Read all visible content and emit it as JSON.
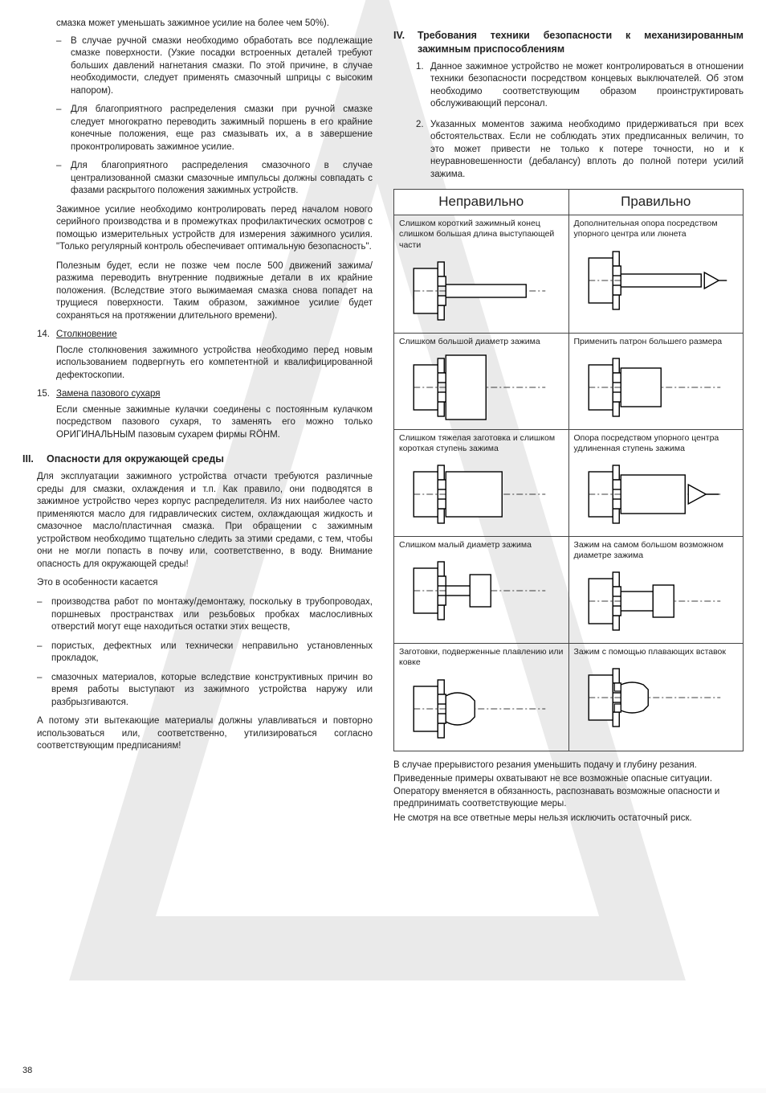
{
  "page_number": "38",
  "watermark_color": "#d6d6d6",
  "text_color": "#222222",
  "left": {
    "cont_para": "смазка может уменьшать зажимное усилие на более чем 50%).",
    "dash1": [
      "В случае ручной смазки необходимо обработать все подлежащие смазке поверхности. (Узкие посадки встроенных деталей требуют больших давлений нагнетания смазки. По этой причине, в случае необходимости, следует применять смазочный шприцы с высоким напором).",
      "Для благоприятного распределения смазки при ручной смазке следует многократно переводить зажимный поршень в его крайние конечные положения, еще раз смазывать их, а в завершение проконтролировать зажимное усилие.",
      "Для благоприятного распределения смазочного в случае централизованной смазки смазочные импульсы должны совпадать с фазами раскрытого положения зажимных устройств."
    ],
    "indent1": "Зажимное усилие необходимо контролировать перед началом нового серийного производства и в промежутках профилактических осмотров с помощью измерительных устройств для измерения зажимного усилия. \"Только регулярный контроль обеспечивает оптимальную безопасность\".",
    "indent2": "Полезным будет, если не позже чем после 500 движений зажима/разжима переводить внутренние подвижные детали в их крайние положения. (Вследствие этого выжимаемая смазка снова попадет на трущиеся поверхности. Таким образом, зажимное усилие будет сохраняться на протяжении длительного времени).",
    "n14_num": "14.",
    "n14_title": "Столкновение",
    "n14_body": "После столкновения зажимного устройства необходимо перед новым использованием подвергнуть его компетентной и квалифицированной дефектоскопии.",
    "n15_num": "15.",
    "n15_title": "Замена пазового сухаря",
    "n15_body": "Если сменные зажимные кулачки соединены с постоянным кулачком посредством пазового сухаря, то заменять его можно только ОРИГИНАЛЬНЫМ пазовым сухарем фирмы RÖHM.",
    "sec3_roman": "III.",
    "sec3_title": "Опасности для окружающей среды",
    "sec3_p1": "Для эксплуатации зажимного устройства отчасти требуются различные среды для смазки, охлаждения и т.п. Как правило, они подводятся в зажимное устройство через корпус распределителя. Из них наиболее часто применяются масло для гидравлических систем, охлаждающая жидкость и смазочное масло/пластичная смазка. При обращении с зажимным устройством необходимо тщательно следить за этими средами, с тем, чтобы они не могли попасть в почву или, соответственно, в воду. Внимание опасность для окружающей среды!",
    "sec3_p2": "Это в особенности касается",
    "dash2": [
      "производства работ по монтажу/демонтажу, поскольку в трубопроводах, поршневых пространствах или резьбовых пробках маслосливных отверстий могут еще находиться остатки этих веществ,",
      "пористых, дефектных или технически неправильно установленных прокладок,",
      "смазочных материалов, которые вследствие конструктивных причин во время работы выступают из зажимного устройства наружу или разбрызгиваются."
    ],
    "sec3_p3": "А потому эти вытекающие материалы должны улавливаться и повторно использоваться или, соответственно, утилизироваться согласно соответствующим предписаниям!"
  },
  "right": {
    "sec4_roman": "IV.",
    "sec4_title": "Требования техники безопасности к механизированным зажимным приспособлениям",
    "ol": [
      "Данное зажимное устройство не может контролироваться в отношении техники безопасности посредством концевых выключателей. Об этом необходимо соответствующим образом проинструктировать обслуживающий персонал.",
      "Указанных моментов зажима необходимо придерживаться при всех обстоятельствах. Если не соблюдать этих предписанных величин, то это может привести не только к потере точности, но и к неуравновешенности (дебалансу) вплоть до полной потери усилий зажима."
    ],
    "table": {
      "type": "table",
      "columns": [
        "Неправильно",
        "Правильно"
      ],
      "rows": [
        {
          "wrong_cap": "Слишком короткий зажимный конец слишком большая длина выступающей части",
          "right_cap": "Дополнительная опора посредством упорного центра или люнета",
          "fig": "overhang"
        },
        {
          "wrong_cap": "Слишком большой диаметр зажима",
          "right_cap": "Применить патрон большего размера",
          "fig": "bigdia"
        },
        {
          "wrong_cap": "Слишком тяжелая заготовка и слишком короткая ступень зажима",
          "right_cap": "Опора посредством упорного центра удлиненная ступень зажима",
          "fig": "heavy"
        },
        {
          "wrong_cap": "Слишком малый диаметр зажима",
          "right_cap": "Зажим на самом большом возможном диаметре зажима",
          "fig": "smalldia"
        },
        {
          "wrong_cap": "Заготовки, подверженные плавлению или ковке",
          "right_cap": "Зажим с помощью плавающих вставок",
          "fig": "forge"
        }
      ],
      "stroke": "#000000",
      "stroke_width": 1.5,
      "hatch_color": "#000000",
      "bg": "#ffffff"
    },
    "closing_p1": "В случае прерывистого резания уменьшить подачу и глубину резания.",
    "closing_p2": "Приведенные примеры охватывают не все возможные опасные ситуации. Оператору вменяется в обязанность, распознавать возможные опасности и предпринимать соответствующие меры.",
    "closing_p3": "Не смотря на все ответные меры нельзя исключить остаточный риск."
  }
}
